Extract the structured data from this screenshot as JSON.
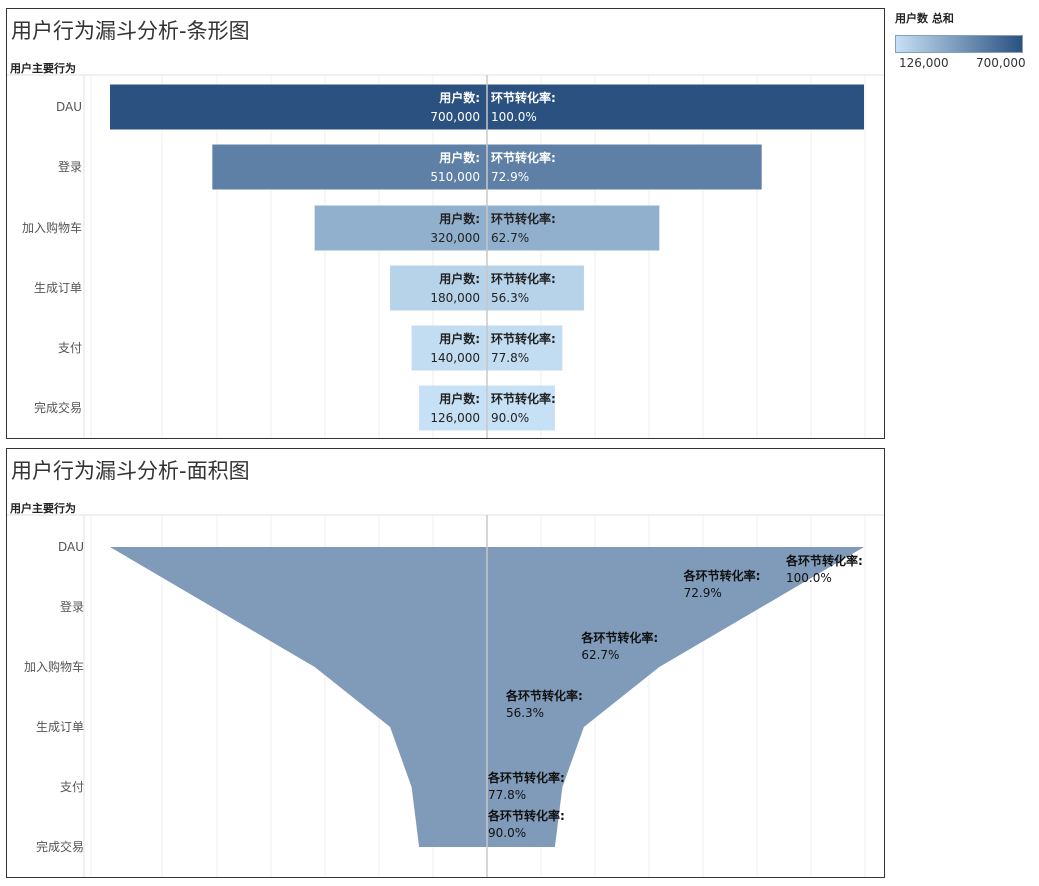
{
  "legend": {
    "title": "用户数 总和",
    "min_label": "126,000",
    "max_label": "700,000",
    "color_low": "#c6e0f5",
    "color_high": "#2a5180"
  },
  "chart_data": [
    {
      "type": "bar",
      "title": "用户行为漏斗分析-条形图",
      "row_header": "用户主要行为",
      "categories": [
        "DAU",
        "登录",
        "加入购物车",
        "生成订单",
        "支付",
        "完成交易"
      ],
      "values": [
        700000,
        510000,
        320000,
        180000,
        140000,
        126000
      ],
      "value_labels": [
        "700,000",
        "510,000",
        "320,000",
        "180,000",
        "140,000",
        "126,000"
      ],
      "rates": [
        "100.0%",
        "72.9%",
        "62.7%",
        "56.3%",
        "77.8%",
        "90.0%"
      ],
      "label_users": "用户数:",
      "label_rate": "环节转化率:",
      "layout": "centered-funnel",
      "color_encoding": "sequential-blue by user count"
    },
    {
      "type": "area",
      "title": "用户行为漏斗分析-面积图",
      "row_header": "用户主要行为",
      "categories": [
        "DAU",
        "登录",
        "加入购物车",
        "生成订单",
        "支付",
        "完成交易"
      ],
      "values": [
        700000,
        510000,
        320000,
        180000,
        140000,
        126000
      ],
      "rates": [
        "100.0%",
        "72.9%",
        "62.7%",
        "56.3%",
        "77.8%",
        "90.0%"
      ],
      "label_rate": "各环节转化率:",
      "layout": "centered-funnel",
      "fill_color": "#7f9bb9"
    }
  ]
}
